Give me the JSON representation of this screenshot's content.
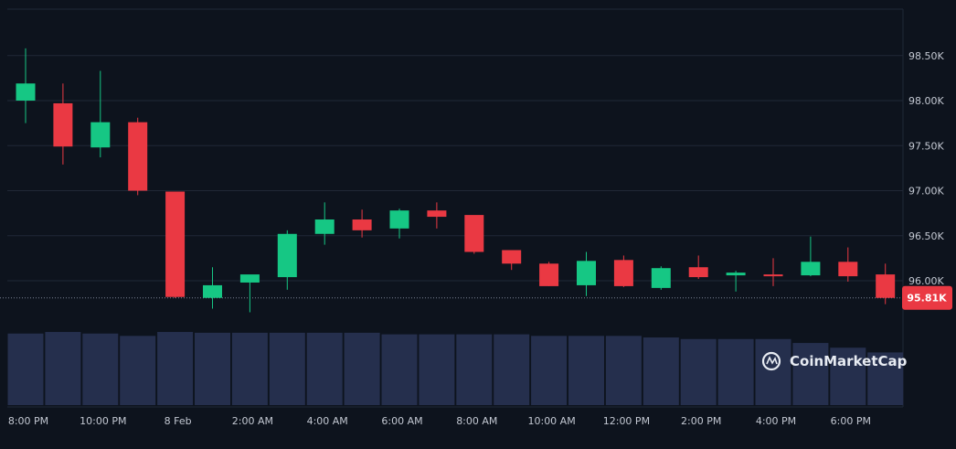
{
  "chart_data": {
    "type": "candlestick",
    "y_ticks": [
      "96.00K",
      "96.50K",
      "97.00K",
      "97.50K",
      "98.00K",
      "98.50K"
    ],
    "y_tick_values": [
      96000,
      96500,
      97000,
      97500,
      98000,
      98500
    ],
    "ylim": [
      95400,
      98900
    ],
    "x_ticks": [
      "8:00 PM",
      "10:00 PM",
      "8 Feb",
      "2:00 AM",
      "4:00 AM",
      "6:00 AM",
      "8:00 AM",
      "10:00 AM",
      "12:00 PM",
      "2:00 PM",
      "4:00 PM",
      "6:00 PM"
    ],
    "x_tick_index": [
      0,
      2,
      4,
      6,
      8,
      10,
      12,
      14,
      16,
      18,
      20,
      22
    ],
    "current_price": 95810,
    "current_price_label": "95.81K",
    "colors": {
      "up": "#16c784",
      "down": "#ea3943",
      "volume": "#252f4d",
      "grid": "#202836",
      "price_tag": "#ea3943"
    },
    "candles": [
      {
        "o": 98000,
        "h": 98580,
        "l": 97750,
        "c": 98190
      },
      {
        "o": 97970,
        "h": 98190,
        "l": 97290,
        "c": 97490
      },
      {
        "o": 97480,
        "h": 98330,
        "l": 97370,
        "c": 97760
      },
      {
        "o": 97760,
        "h": 97810,
        "l": 96950,
        "c": 97000
      },
      {
        "o": 96990,
        "h": 96990,
        "l": 95810,
        "c": 95820
      },
      {
        "o": 95810,
        "h": 96150,
        "l": 95690,
        "c": 95950
      },
      {
        "o": 95980,
        "h": 96060,
        "l": 95650,
        "c": 96070
      },
      {
        "o": 96040,
        "h": 96560,
        "l": 95900,
        "c": 96520
      },
      {
        "o": 96520,
        "h": 96870,
        "l": 96400,
        "c": 96680
      },
      {
        "o": 96680,
        "h": 96790,
        "l": 96480,
        "c": 96560
      },
      {
        "o": 96580,
        "h": 96800,
        "l": 96470,
        "c": 96780
      },
      {
        "o": 96780,
        "h": 96870,
        "l": 96580,
        "c": 96710
      },
      {
        "o": 96730,
        "h": 96720,
        "l": 96300,
        "c": 96320
      },
      {
        "o": 96340,
        "h": 96340,
        "l": 96120,
        "c": 96190
      },
      {
        "o": 96190,
        "h": 96210,
        "l": 95940,
        "c": 95940
      },
      {
        "o": 95950,
        "h": 96320,
        "l": 95830,
        "c": 96220
      },
      {
        "o": 96230,
        "h": 96280,
        "l": 95930,
        "c": 95940
      },
      {
        "o": 95920,
        "h": 96160,
        "l": 95900,
        "c": 96140
      },
      {
        "o": 96150,
        "h": 96280,
        "l": 96020,
        "c": 96040
      },
      {
        "o": 96060,
        "h": 96110,
        "l": 95880,
        "c": 96090
      },
      {
        "o": 96070,
        "h": 96250,
        "l": 95940,
        "c": 96060
      },
      {
        "o": 96060,
        "h": 96490,
        "l": 96050,
        "c": 96210
      },
      {
        "o": 96210,
        "h": 96370,
        "l": 95990,
        "c": 96050
      },
      {
        "o": 96070,
        "h": 96190,
        "l": 95740,
        "c": 95810
      }
    ],
    "volumes": [
      0.91,
      0.93,
      0.91,
      0.88,
      0.93,
      0.92,
      0.92,
      0.92,
      0.92,
      0.92,
      0.9,
      0.9,
      0.9,
      0.9,
      0.88,
      0.88,
      0.88,
      0.86,
      0.84,
      0.84,
      0.84,
      0.79,
      0.73,
      0.67
    ]
  },
  "watermark": {
    "text": "CoinMarketCap",
    "icon": "coinmarketcap-logo-icon"
  }
}
